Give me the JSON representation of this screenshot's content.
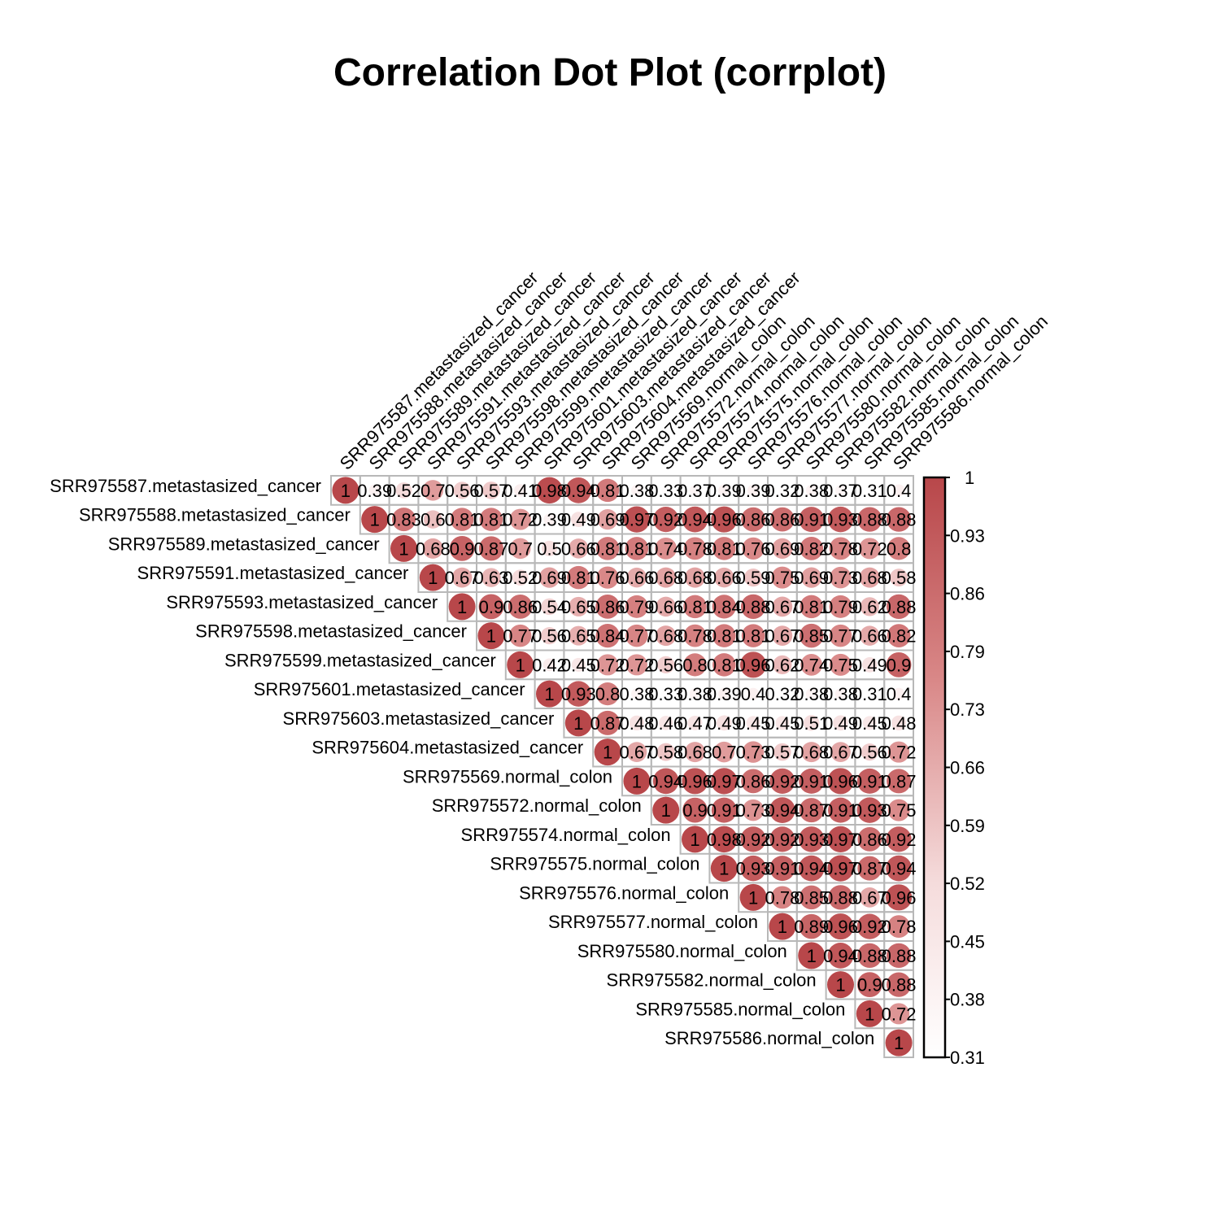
{
  "chart_data": {
    "type": "heatmap",
    "title": "Correlation Dot Plot (corrplot)",
    "variables": [
      "SRR975587.metastasized_cancer",
      "SRR975588.metastasized_cancer",
      "SRR975589.metastasized_cancer",
      "SRR975591.metastasized_cancer",
      "SRR975593.metastasized_cancer",
      "SRR975598.metastasized_cancer",
      "SRR975599.metastasized_cancer",
      "SRR975601.metastasized_cancer",
      "SRR975603.metastasized_cancer",
      "SRR975604.metastasized_cancer",
      "SRR975569.normal_colon",
      "SRR975572.normal_colon",
      "SRR975574.normal_colon",
      "SRR975575.normal_colon",
      "SRR975576.normal_colon",
      "SRR975577.normal_colon",
      "SRR975580.normal_colon",
      "SRR975582.normal_colon",
      "SRR975585.normal_colon",
      "SRR975586.normal_colon"
    ],
    "upper_triangle": [
      [
        "1",
        "0.39",
        "0.52",
        "0.7",
        "0.56",
        "0.57",
        "0.41",
        "0.98",
        "0.94",
        "0.81",
        "0.38",
        "0.33",
        "0.37",
        "0.39",
        "0.39",
        "0.32",
        "0.38",
        "0.37",
        "0.31",
        "0.4"
      ],
      [
        "1",
        "0.83",
        "0.6",
        "0.81",
        "0.81",
        "0.72",
        "0.39",
        "0.49",
        "0.69",
        "0.97",
        "0.92",
        "0.94",
        "0.96",
        "0.86",
        "0.86",
        "0.91",
        "0.93",
        "0.88",
        "0.88"
      ],
      [
        "1",
        "0.68",
        "0.9",
        "0.87",
        "0.7",
        "0.5",
        "0.66",
        "0.81",
        "0.81",
        "0.74",
        "0.78",
        "0.81",
        "0.76",
        "0.69",
        "0.82",
        "0.78",
        "0.72",
        "0.8"
      ],
      [
        "1",
        "0.67",
        "0.63",
        "0.52",
        "0.69",
        "0.81",
        "0.76",
        "0.66",
        "0.68",
        "0.68",
        "0.66",
        "0.59",
        "0.75",
        "0.69",
        "0.73",
        "0.68",
        "0.58"
      ],
      [
        "1",
        "0.9",
        "0.86",
        "0.54",
        "0.65",
        "0.86",
        "0.79",
        "0.66",
        "0.81",
        "0.84",
        "0.88",
        "0.67",
        "0.81",
        "0.79",
        "0.62",
        "0.88"
      ],
      [
        "1",
        "0.77",
        "0.56",
        "0.65",
        "0.84",
        "0.77",
        "0.68",
        "0.78",
        "0.81",
        "0.81",
        "0.67",
        "0.85",
        "0.77",
        "0.66",
        "0.82"
      ],
      [
        "1",
        "0.42",
        "0.45",
        "0.72",
        "0.72",
        "0.56",
        "0.8",
        "0.81",
        "0.96",
        "0.62",
        "0.74",
        "0.75",
        "0.49",
        "0.9"
      ],
      [
        "1",
        "0.93",
        "0.8",
        "0.38",
        "0.33",
        "0.38",
        "0.39",
        "0.4",
        "0.32",
        "0.38",
        "0.38",
        "0.31",
        "0.4"
      ],
      [
        "1",
        "0.87",
        "0.48",
        "0.46",
        "0.47",
        "0.49",
        "0.45",
        "0.45",
        "0.51",
        "0.49",
        "0.45",
        "0.48"
      ],
      [
        "1",
        "0.67",
        "0.58",
        "0.68",
        "0.7",
        "0.73",
        "0.57",
        "0.68",
        "0.67",
        "0.56",
        "0.72"
      ],
      [
        "1",
        "0.94",
        "0.96",
        "0.97",
        "0.86",
        "0.92",
        "0.91",
        "0.96",
        "0.91",
        "0.87"
      ],
      [
        "1",
        "0.9",
        "0.91",
        "0.73",
        "0.94",
        "0.87",
        "0.91",
        "0.93",
        "0.75"
      ],
      [
        "1",
        "0.98",
        "0.92",
        "0.92",
        "0.93",
        "0.97",
        "0.86",
        "0.92"
      ],
      [
        "1",
        "0.93",
        "0.91",
        "0.94",
        "0.97",
        "0.87",
        "0.94"
      ],
      [
        "1",
        "0.78",
        "0.85",
        "0.88",
        "0.67",
        "0.96"
      ],
      [
        "1",
        "0.89",
        "0.96",
        "0.92",
        "0.78"
      ],
      [
        "1",
        "0.94",
        "0.88",
        "0.88"
      ],
      [
        "1",
        "0.9",
        "0.88"
      ],
      [
        "1",
        "0.72"
      ],
      [
        "1"
      ]
    ],
    "colorbar": {
      "min": 0.31,
      "max": 1,
      "ticks": [
        "1",
        "0.93",
        "0.86",
        "0.79",
        "0.73",
        "0.66",
        "0.59",
        "0.52",
        "0.45",
        "0.38",
        "0.31"
      ],
      "low_color": "#ffffff",
      "high_color": "#b2182b"
    },
    "grid": true
  }
}
